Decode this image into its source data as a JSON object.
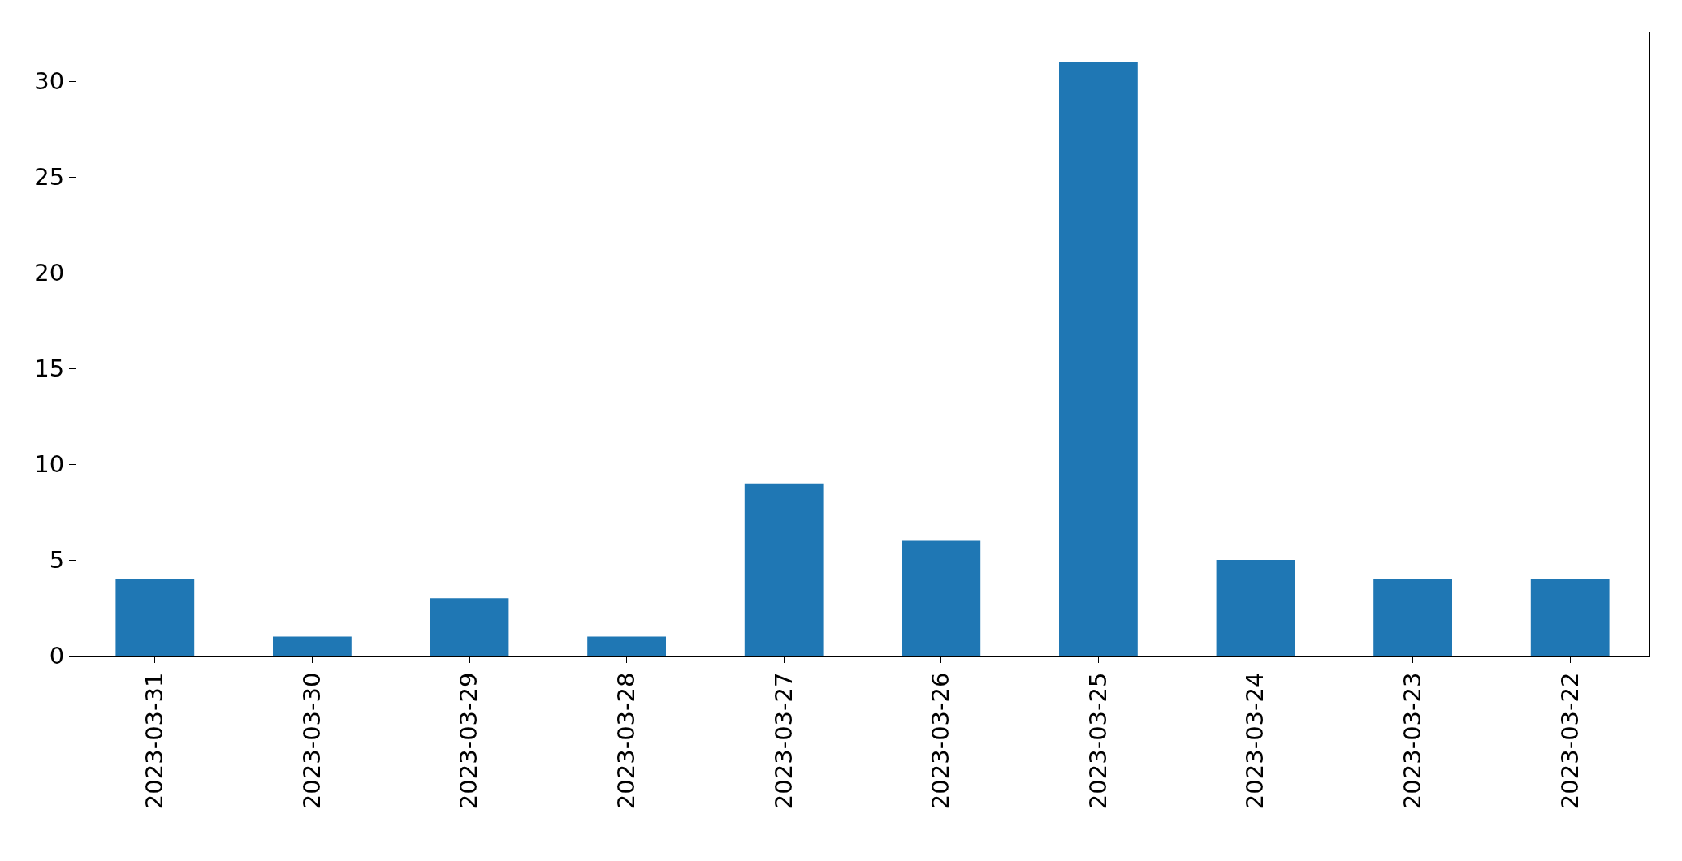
{
  "chart_data": {
    "type": "bar",
    "categories": [
      "2023-03-31",
      "2023-03-30",
      "2023-03-29",
      "2023-03-28",
      "2023-03-27",
      "2023-03-26",
      "2023-03-25",
      "2023-03-24",
      "2023-03-23",
      "2023-03-22"
    ],
    "values": [
      4,
      1,
      3,
      1,
      9,
      6,
      31,
      5,
      4,
      4
    ],
    "color": "#1f77b4",
    "ylim": [
      0,
      32.55
    ],
    "yticks": [
      0,
      5,
      10,
      15,
      20,
      25,
      30
    ]
  }
}
